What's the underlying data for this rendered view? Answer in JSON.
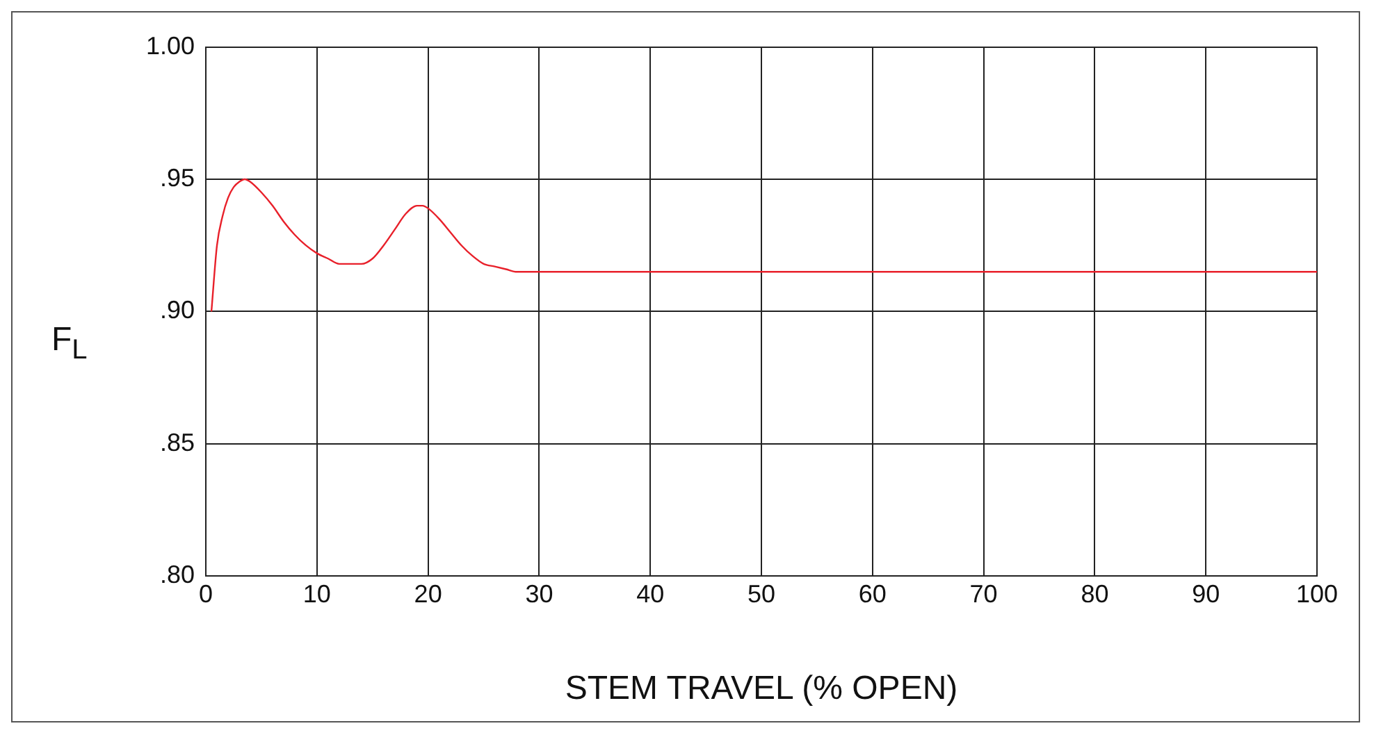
{
  "chart_data": {
    "type": "line",
    "xlabel": "STEM TRAVEL (% OPEN)",
    "ylabel": "F$_{L}$",
    "series": [
      {
        "color": "#e8202a",
        "x": [
          0.5,
          1,
          1.5,
          2,
          2.5,
          3,
          3.5,
          4,
          5,
          6,
          7,
          8,
          9,
          10,
          11,
          12,
          13,
          14,
          15,
          16,
          17,
          18,
          19,
          19.5,
          20,
          21,
          22,
          23,
          24,
          25,
          26,
          27,
          28,
          29,
          30,
          40,
          50,
          60,
          70,
          80,
          90,
          100
        ],
        "values": [
          0.9,
          0.925,
          0.936,
          0.943,
          0.947,
          0.949,
          0.95,
          0.949,
          0.945,
          0.94,
          0.934,
          0.929,
          0.925,
          0.922,
          0.92,
          0.918,
          0.918,
          0.918,
          0.92,
          0.925,
          0.931,
          0.937,
          0.94,
          0.94,
          0.939,
          0.935,
          0.93,
          0.925,
          0.921,
          0.918,
          0.917,
          0.916,
          0.915,
          0.915,
          0.915,
          0.915,
          0.915,
          0.915,
          0.915,
          0.915,
          0.915,
          0.915
        ]
      }
    ],
    "xlim": [
      0,
      100
    ],
    "xticks": [
      0,
      10,
      20,
      30,
      40,
      50,
      60,
      70,
      80,
      90,
      100
    ],
    "ylim": [
      0.8,
      1.0
    ],
    "yticks": [
      {
        "value": 0.8,
        "label": ".80"
      },
      {
        "value": 0.85,
        "label": ".85"
      },
      {
        "value": 0.9,
        "label": ".90"
      },
      {
        "value": 0.95,
        "label": ".95"
      },
      {
        "value": 1.0,
        "label": "1.00"
      }
    ],
    "grid": true,
    "marker": "none",
    "line_style": "solid",
    "legend": false
  }
}
